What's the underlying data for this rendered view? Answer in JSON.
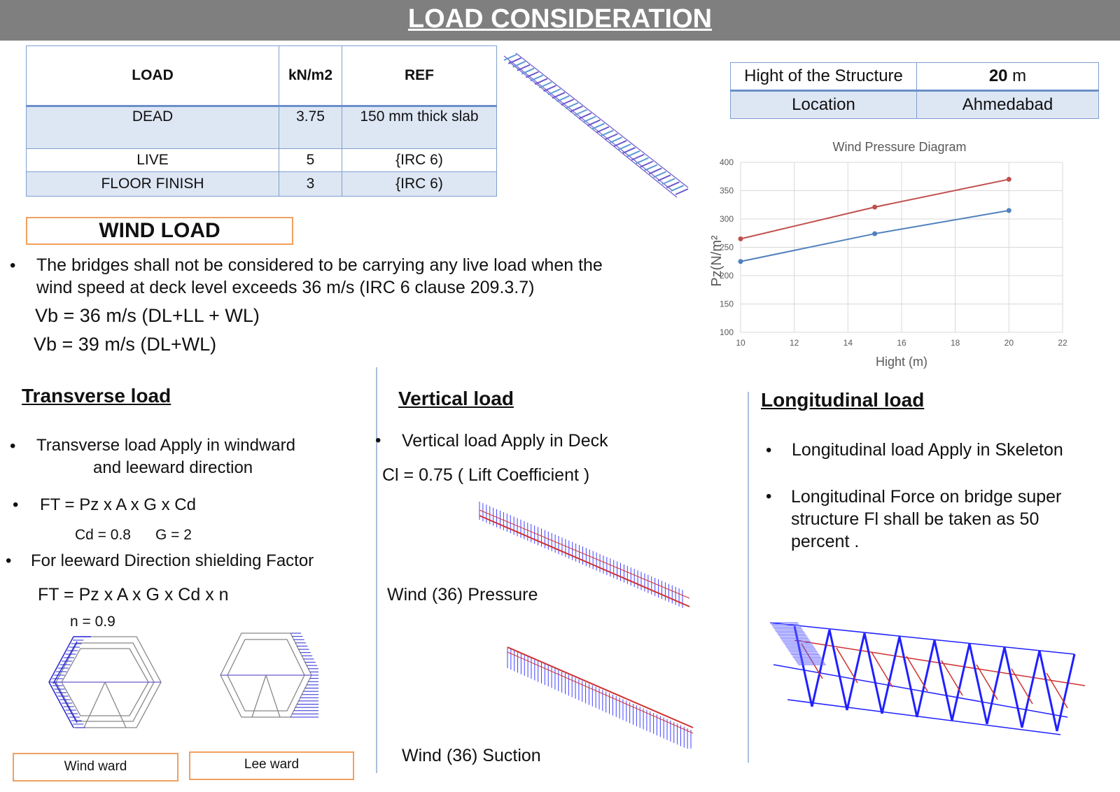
{
  "title": "LOAD CONSIDERATION",
  "load_table": {
    "headers": [
      "LOAD",
      "kN/m2",
      "REF"
    ],
    "rows": [
      [
        "DEAD",
        "3.75",
        "150 mm thick slab"
      ],
      [
        "LIVE",
        "5",
        "{IRC 6)"
      ],
      [
        "FLOOR FINISH",
        "3",
        "{IRC 6)"
      ]
    ]
  },
  "structure_info": {
    "height_label": "Hight of the Structure",
    "height_value": "20",
    "height_unit": " m",
    "location_label": "Location",
    "location_value": "Ahmedabad"
  },
  "wind_load": {
    "heading": "WIND LOAD",
    "bullet": "•",
    "line1": "The bridges shall not be considered to be carrying any live load when the",
    "line2": "wind speed at deck level exceeds 36 m/s (IRC 6 clause 209.3.7)",
    "vb1": "Vb = 36 m/s  (DL+LL + WL)",
    "vb2": "Vb = 39 m/s (DL+WL)"
  },
  "transverse": {
    "heading": "Transverse load",
    "b1_line1": "Transverse load Apply in windward",
    "b1_line2": "and leeward direction",
    "b2": "FT = Pz x A x G x Cd",
    "coeffs": "Cd = 0.8      G = 2",
    "b3": "For leeward Direction  shielding Factor",
    "formula2": "FT = Pz x A x G x Cd x n",
    "n": "n = 0.9",
    "windward_label": "Wind ward",
    "leeward_label": "Lee ward"
  },
  "vertical": {
    "heading": "Vertical load",
    "b1": "Vertical load Apply in Deck",
    "cl": "Cl = 0.75 ( Lift Coefficient )",
    "pressure_label": "Wind (36) Pressure",
    "suction_label": "Wind (36) Suction"
  },
  "longitudinal": {
    "heading": "Longitudinal load",
    "b1": "Longitudinal load Apply in Skeleton",
    "b2_line1": "Longitudinal Force on bridge super",
    "b2_line2": "structure Fl shall be taken as 50",
    "b2_line3": "percent ."
  },
  "chart_data": {
    "type": "line",
    "title": "Wind Pressure Diagram",
    "xlabel": "Hight (m)",
    "ylabel": "Pz(N/m²",
    "xlim": [
      10,
      22
    ],
    "ylim": [
      100,
      400
    ],
    "xticks": [
      10,
      12,
      14,
      16,
      18,
      20,
      22
    ],
    "yticks": [
      100,
      150,
      200,
      250,
      300,
      350,
      400
    ],
    "grid": true,
    "series": [
      {
        "color": "#c0504d",
        "x": [
          10,
          15,
          20
        ],
        "y": [
          265,
          321,
          370
        ]
      },
      {
        "color": "#4f81bd",
        "x": [
          10,
          15,
          20
        ],
        "y": [
          225,
          274,
          315
        ]
      }
    ]
  }
}
